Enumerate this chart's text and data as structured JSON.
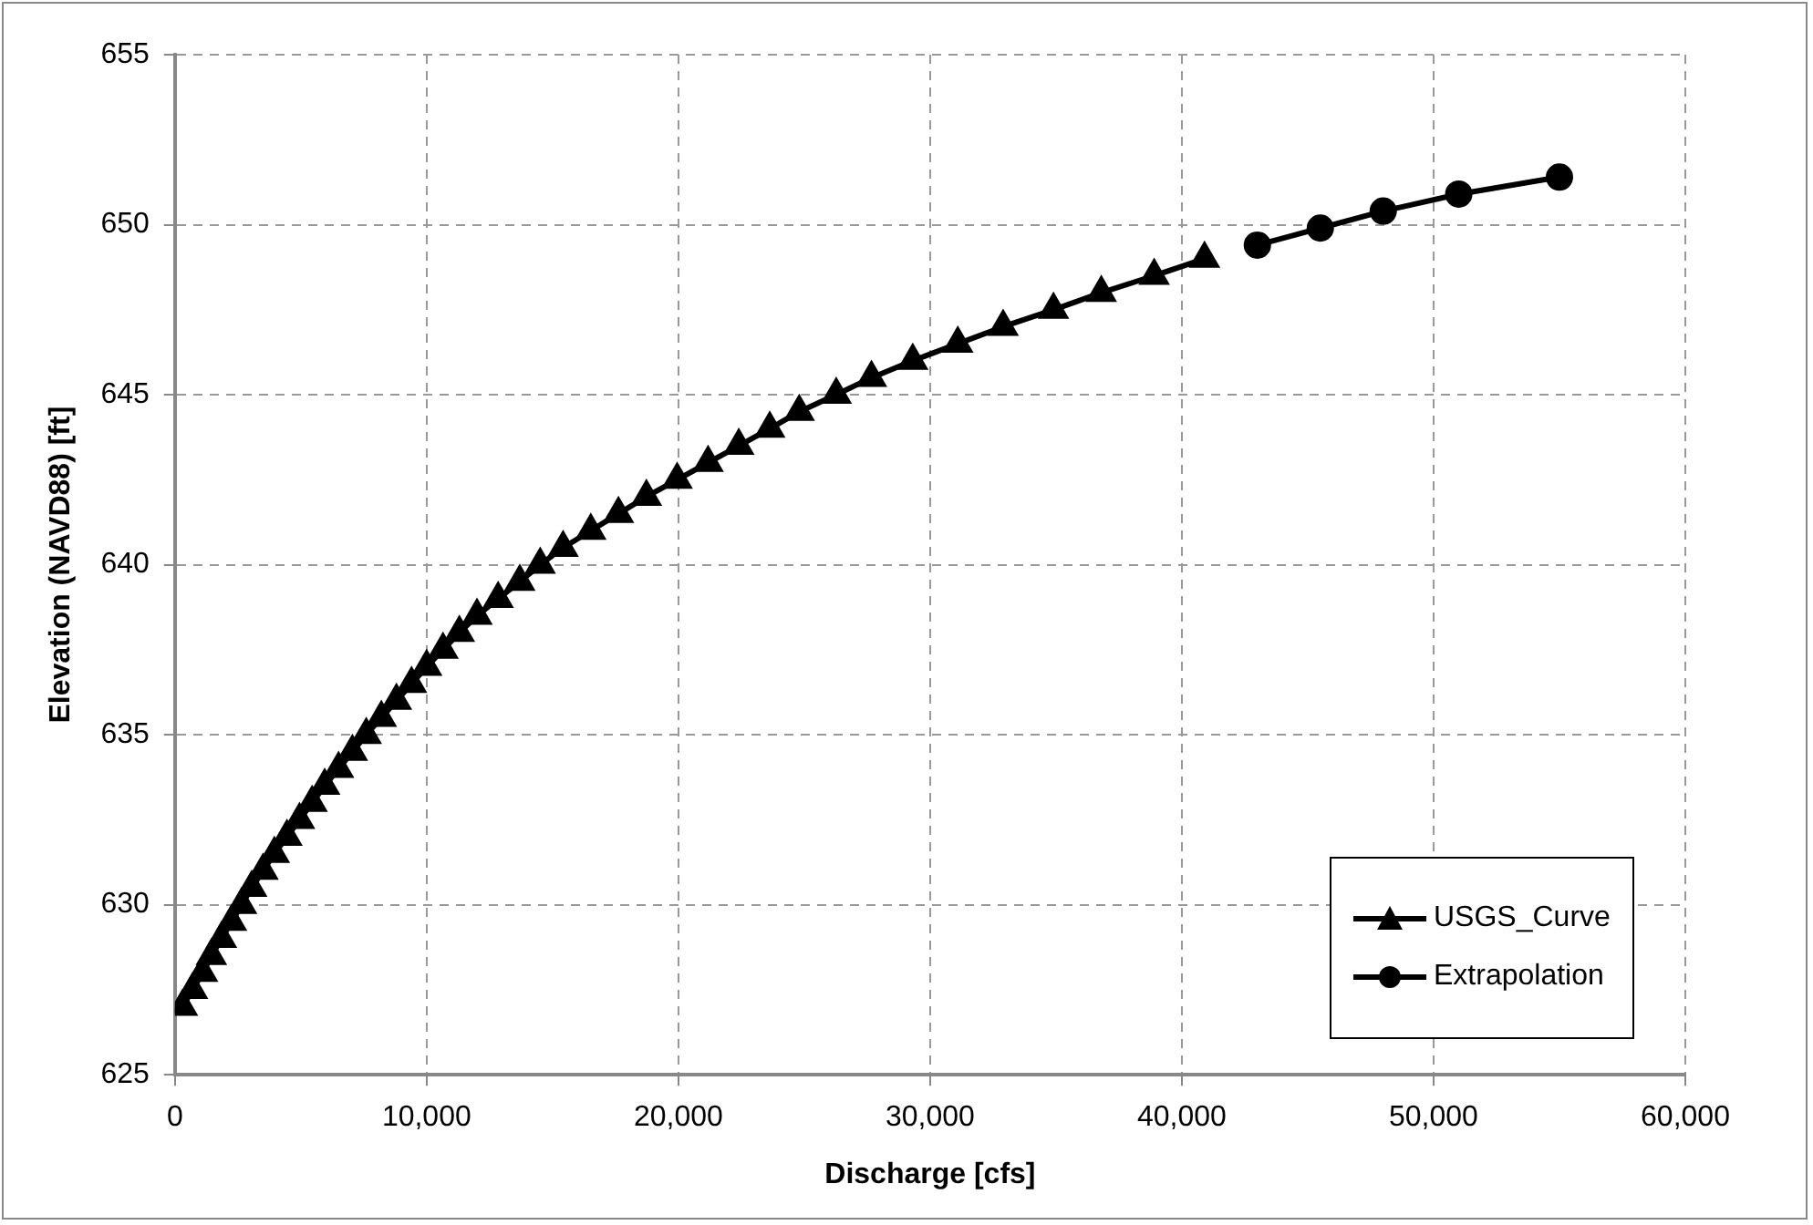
{
  "chart_data": {
    "type": "line",
    "xlabel": "Discharge [cfs]",
    "ylabel": "Elevation (NAVD88) [ft]",
    "xlim": [
      0,
      60000
    ],
    "xticks": [
      0,
      {
        "value": 10000,
        "label": "10,000"
      },
      {
        "value": 20000,
        "label": "20,000"
      },
      {
        "value": 30000,
        "label": "30,000"
      },
      {
        "value": 40000,
        "label": "40,000"
      },
      {
        "value": 50000,
        "label": "50,000"
      },
      {
        "value": 60000,
        "label": "60,000"
      }
    ],
    "ylim": [
      625,
      655
    ],
    "yticks": [
      625,
      630,
      635,
      640,
      645,
      650,
      655
    ],
    "grid": true,
    "legend": "bottom right",
    "line_style": "solid",
    "series": [
      {
        "name": "USGS_Curve",
        "color": "#000000",
        "marker": "triangle",
        "x": [
          300,
          700,
          1100,
          1450,
          1850,
          2250,
          2650,
          3050,
          3500,
          3950,
          4450,
          4950,
          5450,
          5950,
          6500,
          7050,
          7600,
          8200,
          8800,
          9400,
          10000,
          10650,
          11300,
          12000,
          12840,
          13700,
          14510,
          15420,
          16520,
          17620,
          18730,
          19950,
          21180,
          22400,
          23630,
          24800,
          26270,
          27670,
          29310,
          31100,
          32900,
          34900,
          36800,
          38900,
          40900
        ],
        "values": [
          627,
          627.5,
          628,
          628.5,
          629,
          629.5,
          630,
          630.5,
          631,
          631.5,
          632,
          632.5,
          633,
          633.5,
          634,
          634.5,
          635,
          635.5,
          636,
          636.5,
          637,
          637.5,
          638,
          638.5,
          639,
          639.5,
          640,
          640.5,
          641,
          641.5,
          642,
          642.5,
          643,
          643.5,
          644,
          644.5,
          645,
          645.5,
          646,
          646.5,
          647,
          647.5,
          648,
          648.5,
          649
        ]
      },
      {
        "name": "Extrapolation",
        "color": "#000000",
        "marker": "circle",
        "x": [
          43000,
          45500,
          48000,
          51000,
          55000
        ],
        "values": [
          649.4,
          649.9,
          650.4,
          650.9,
          651.4
        ]
      }
    ]
  }
}
